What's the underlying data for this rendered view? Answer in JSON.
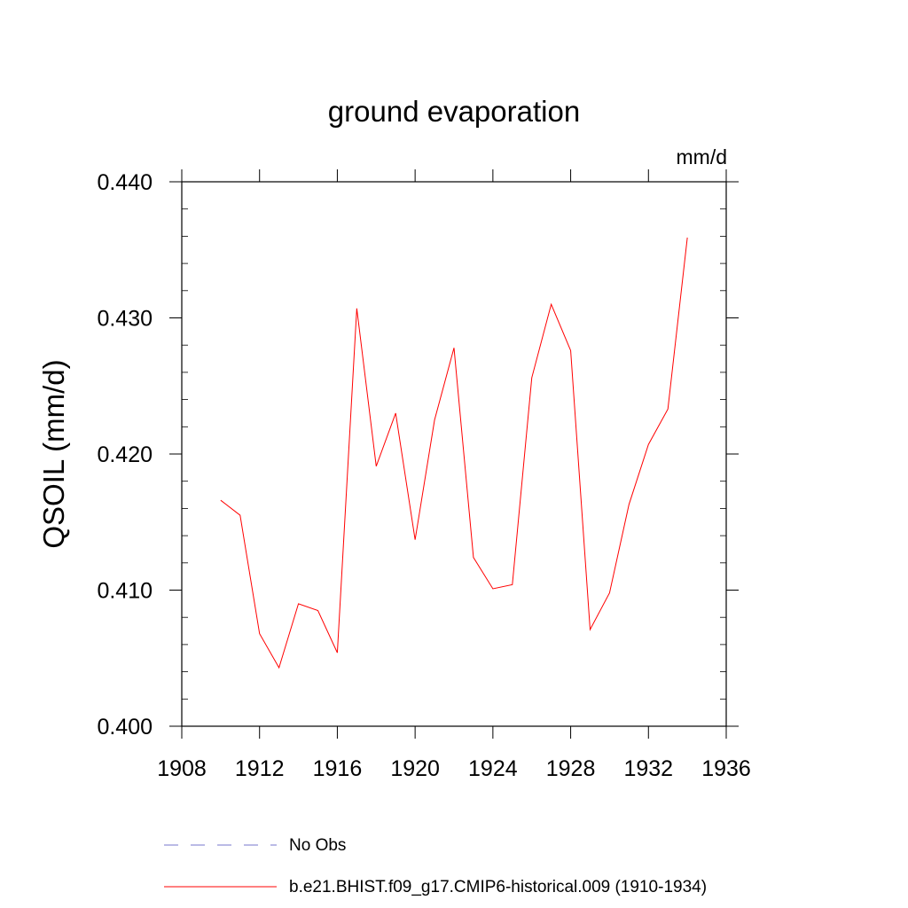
{
  "chart_data": {
    "type": "line",
    "title": "ground evaporation",
    "units_label": "mm/d",
    "ylabel": "QSOIL  (mm/d)",
    "xlabel": "",
    "xlim": [
      1908,
      1936
    ],
    "ylim": [
      0.4,
      0.44
    ],
    "x_ticks": [
      "1908",
      "1912",
      "1916",
      "1920",
      "1924",
      "1928",
      "1932",
      "1936"
    ],
    "y_ticks": [
      "0.400",
      "0.410",
      "0.420",
      "0.430",
      "0.440"
    ],
    "grid": false,
    "legend_position": "bottom",
    "x": [
      1910,
      1911,
      1912,
      1913,
      1914,
      1915,
      1916,
      1917,
      1918,
      1919,
      1920,
      1921,
      1922,
      1923,
      1924,
      1925,
      1926,
      1927,
      1928,
      1929,
      1930,
      1931,
      1932,
      1933,
      1934
    ],
    "series": [
      {
        "name": "b.e21.BHIST.f09_g17.CMIP6-historical.009 (1910-1934)",
        "color": "#ff0000",
        "values": [
          0.4166,
          0.4155,
          0.4068,
          0.4043,
          0.409,
          0.4085,
          0.4054,
          0.4307,
          0.4191,
          0.423,
          0.4137,
          0.4225,
          0.4278,
          0.4124,
          0.4101,
          0.4104,
          0.4256,
          0.431,
          0.4276,
          0.4071,
          0.4098,
          0.4163,
          0.4207,
          0.4233,
          0.4359
        ]
      }
    ],
    "legend": [
      {
        "label": "No Obs",
        "color": "#7777cc",
        "style": "dashed"
      },
      {
        "label": "b.e21.BHIST.f09_g17.CMIP6-historical.009 (1910-1934)",
        "color": "#ff0000",
        "style": "solid"
      }
    ]
  }
}
